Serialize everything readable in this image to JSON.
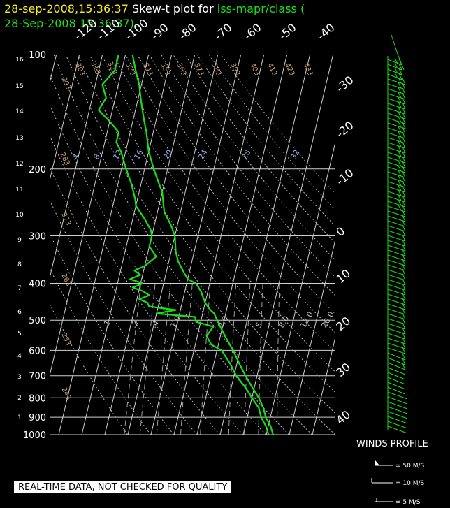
{
  "header": {
    "date_time": "28-sep-2008,15:36:37",
    "plot_label": " Skew-t plot for ",
    "dataset": "iss-mapr/class (",
    "subtitle": "28-Sep-2008 15:36:37)."
  },
  "winds_profile_label": "WINDS PROFILE",
  "quality_note": "REAL-TIME DATA, NOT CHECKED FOR QUALITY",
  "wind_legend": [
    "= 50 M/S",
    "= 10 M/S",
    "= 5 M/S"
  ],
  "colors": {
    "background": "#000000",
    "sounding": "#18e018",
    "grid": "#c8c8c8",
    "dry_adiabat_label": "#c8a070",
    "mixing_ratio_label": "#8ab4e8"
  },
  "chart_data": {
    "type": "line",
    "chart_kind": "skew-t log-p",
    "pressure_levels_hpa": [
      100,
      200,
      300,
      400,
      500,
      600,
      700,
      800,
      900,
      1000
    ],
    "height_km_ticks": [
      16,
      15,
      14,
      13,
      12,
      11,
      10,
      9,
      8,
      7,
      6,
      5,
      4,
      3,
      2,
      1
    ],
    "temperature_ticks_c": [
      "-120",
      "-110",
      "-100",
      "-90",
      "-80",
      "-70",
      "-60",
      "-50",
      "-40",
      "-30",
      "-20",
      "-10",
      "0",
      "10",
      "20",
      "30",
      "40"
    ],
    "dry_adiabat_labels_k": [
      "303",
      "313",
      "323",
      "333",
      "343",
      "353",
      "363",
      "373",
      "383",
      "393",
      "403",
      "413",
      "423",
      "433",
      "293",
      "283",
      "273",
      "263",
      "253",
      "243"
    ],
    "mixing_ratio_labels_top": [
      "4",
      "8",
      "12",
      "16",
      "20",
      "24",
      "28",
      "32"
    ],
    "mixing_ratio_labels_bottom": [
      ".1",
      ".2",
      ".4",
      "1.0",
      "2.0",
      "5",
      "8.0",
      "12.0",
      "20.0"
    ],
    "series": [
      {
        "pressure": [
          1000,
          950,
          900,
          850,
          800,
          750,
          700,
          650,
          600,
          570,
          550,
          520,
          500,
          480,
          470,
          450,
          430,
          420,
          400,
          390,
          370,
          350,
          330,
          300,
          280,
          260,
          250,
          230,
          210,
          200,
          180,
          160,
          150,
          140,
          130,
          120,
          110,
          100
        ],
        "temperature": [
          23,
          21,
          18,
          16,
          13,
          9,
          5,
          1,
          -3,
          -6,
          -8,
          -11,
          -13,
          -15,
          -17,
          -20,
          -22,
          -23,
          -26,
          -30,
          -33,
          -36,
          -38,
          -40,
          -43,
          -47,
          -48,
          -50,
          -54,
          -56,
          -60,
          -63,
          -65,
          -67,
          -69,
          -71,
          -74,
          -77
        ]
      },
      {
        "pressure": [
          1000,
          950,
          900,
          850,
          800,
          750,
          700,
          650,
          600,
          580,
          550,
          520,
          505,
          490,
          480,
          470,
          460,
          450,
          440,
          430,
          420,
          410,
          400,
          390,
          380,
          370,
          360,
          350,
          340,
          320,
          300,
          290,
          270,
          250,
          240,
          220,
          200,
          180,
          170,
          160,
          150,
          140,
          130,
          120,
          110,
          100
        ],
        "dewpoint": [
          21,
          19,
          16,
          14,
          10,
          6,
          1,
          -3,
          -8,
          -13,
          -16,
          -14,
          -22,
          -23,
          -40,
          -32,
          -44,
          -45,
          -49,
          -45,
          -48,
          -53,
          -49,
          -55,
          -51,
          -54,
          -50,
          -48,
          -46,
          -50,
          -50,
          -51,
          -55,
          -60,
          -61,
          -64,
          -68,
          -72,
          -75,
          -75,
          -80,
          -86,
          -84,
          -87,
          -83,
          -83
        ]
      }
    ],
    "wind_barbs": "vertical profile of barbs, light winds near the surface increasing aloft",
    "legend_placement": "bottom-right"
  }
}
